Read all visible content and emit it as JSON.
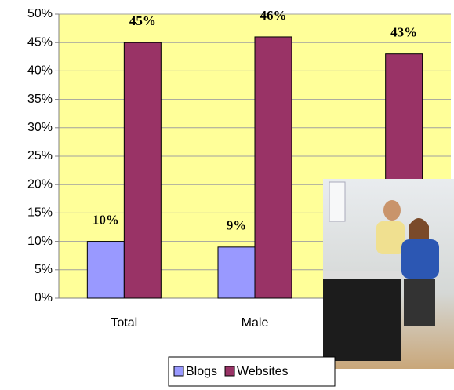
{
  "chart_data": {
    "type": "bar",
    "categories": [
      "Total",
      "Male",
      null
    ],
    "series": [
      {
        "name": "Blogs",
        "color": "#9999ff",
        "values": [
          10,
          9,
          null
        ],
        "value_labels": [
          "10%",
          "9%",
          null
        ]
      },
      {
        "name": "Websites",
        "color": "#993366",
        "values": [
          45,
          46,
          43
        ],
        "value_labels": [
          "45%",
          "46%",
          "43%"
        ]
      }
    ],
    "ylim": [
      0,
      50
    ],
    "yticks": [
      {
        "value": 0,
        "label": "0%"
      },
      {
        "value": 5,
        "label": "5%"
      },
      {
        "value": 10,
        "label": "10%"
      },
      {
        "value": 15,
        "label": "15%"
      },
      {
        "value": 20,
        "label": "20%"
      },
      {
        "value": 25,
        "label": "25%"
      },
      {
        "value": 30,
        "label": "30%"
      },
      {
        "value": 35,
        "label": "35%"
      },
      {
        "value": 40,
        "label": "40%"
      },
      {
        "value": 45,
        "label": "45%"
      },
      {
        "value": 50,
        "label": "50%"
      }
    ],
    "grid": true,
    "legend": "bottom"
  }
}
